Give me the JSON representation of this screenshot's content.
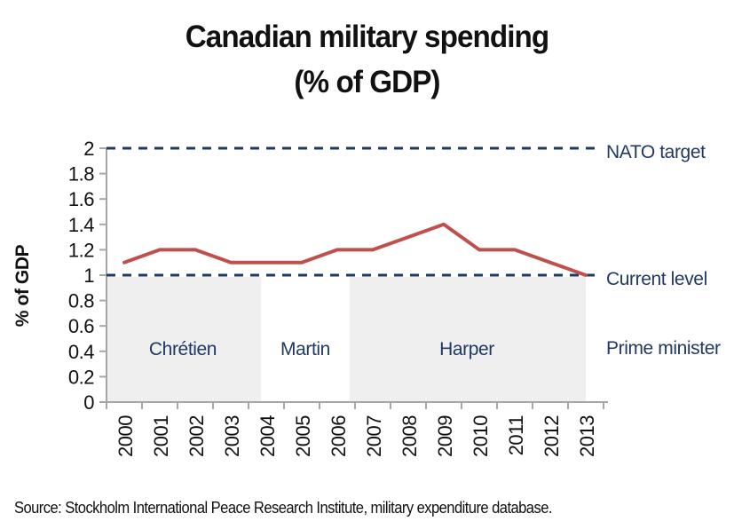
{
  "title": {
    "line1": "Canadian military spending",
    "line2": "(% of GDP)"
  },
  "source": "Source: Stockholm International Peace Research Institute, military expenditure database.",
  "chart_data": {
    "type": "line",
    "title": "Canadian military spending (% of GDP)",
    "xlabel": "",
    "ylabel": "% of GDP",
    "x": [
      2000,
      2001,
      2002,
      2003,
      2004,
      2005,
      2006,
      2007,
      2008,
      2009,
      2010,
      2011,
      2012,
      2013
    ],
    "series": [
      {
        "name": "Canadian military spending (% of GDP)",
        "color": "#c0504d",
        "values": [
          1.1,
          1.2,
          1.2,
          1.1,
          1.1,
          1.1,
          1.2,
          1.2,
          1.3,
          1.4,
          1.2,
          1.2,
          1.1,
          1.0
        ]
      }
    ],
    "ylim": [
      0,
      2
    ],
    "ytick_step": 0.2,
    "grid": false,
    "legend_position": "right-annotations",
    "reference_lines": [
      {
        "label": "NATO target",
        "value": 2,
        "style": "dashed",
        "color": "#1f3a5f"
      },
      {
        "label": "Current level",
        "value": 1,
        "style": "dashed",
        "color": "#1f3a5f"
      }
    ],
    "regions_axis_label": "Prime minister",
    "region_fill": "#efefef",
    "regions": [
      {
        "label": "Chrétien",
        "year_start": 1999.5,
        "year_end": 2003.85,
        "shaded": true
      },
      {
        "label": "Martin",
        "year_start": 2003.85,
        "year_end": 2006.35,
        "shaded": false
      },
      {
        "label": "Harper",
        "year_start": 2006.35,
        "year_end": 2013.0,
        "shaded": true
      }
    ],
    "colors": {
      "series_line": "#c0504d",
      "reference_dash": "#1f3a5f",
      "annotation_text": "#1f3864",
      "axis_line": "#a6a6a6",
      "region_fill": "#efefef",
      "tick_text": "#111111"
    }
  }
}
